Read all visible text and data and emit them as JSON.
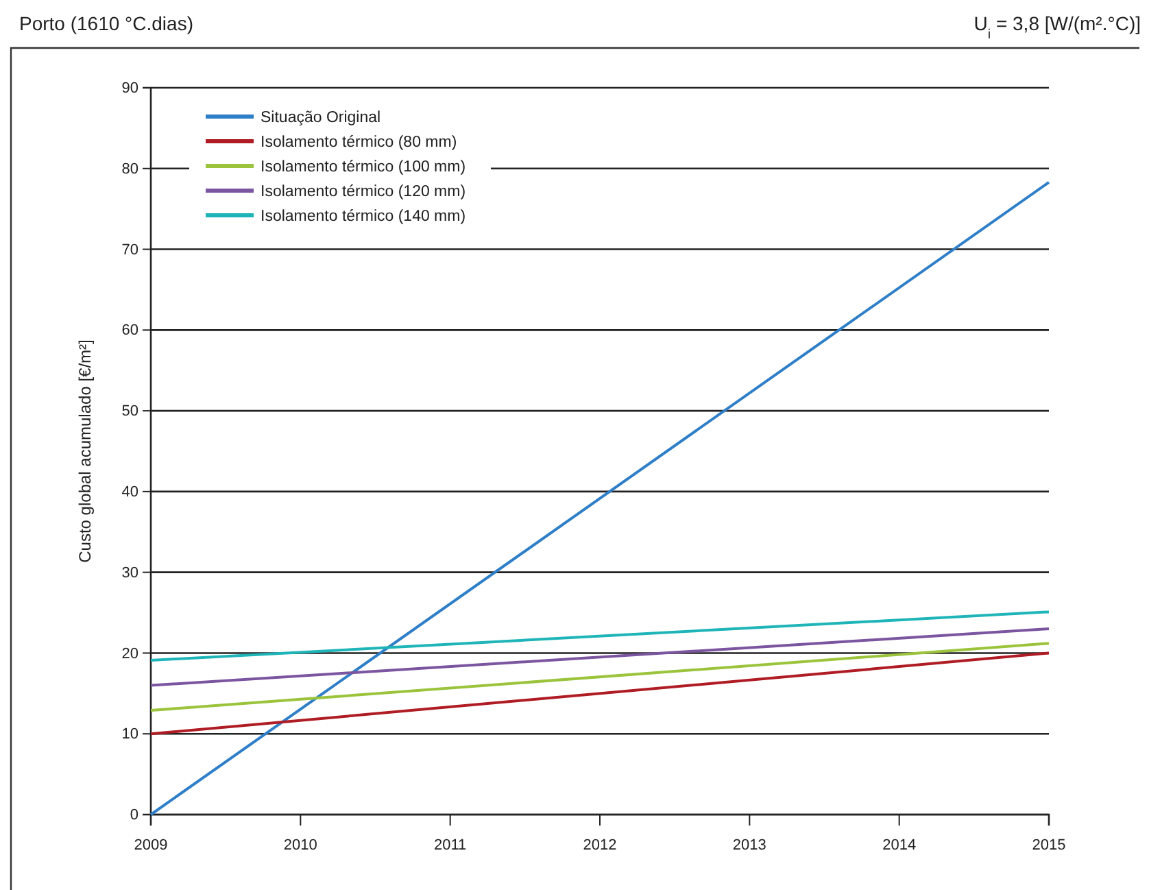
{
  "chart_data": {
    "type": "line",
    "title": "Porto (1610 °C.dias)",
    "subtitle": "U$_{i}$ = 3,8 [W/(m².°C)]",
    "ylabel": "Custo global acumulado [€/m²]",
    "x": [
      2009,
      2015
    ],
    "xlim": [
      2009,
      2015
    ],
    "xticks": [
      2009,
      2010,
      2011,
      2012,
      2013,
      2014,
      2015
    ],
    "ylim": [
      0,
      90
    ],
    "yticks": [
      0,
      10,
      20,
      30,
      40,
      50,
      60,
      70,
      80,
      90
    ],
    "grid": "y",
    "legend": "top left",
    "marker": "none",
    "line_style": "solid",
    "series": [
      {
        "name": "Situação Original",
        "color": "#2e7fc8",
        "values": [
          0,
          78.3
        ]
      },
      {
        "name": "Isolamento térmico (80 mm)",
        "color": "#b01c24",
        "values": [
          10,
          20
        ]
      },
      {
        "name": "Isolamento térmico (100 mm)",
        "color": "#9bc43c",
        "values": [
          12.9,
          21.2
        ]
      },
      {
        "name": "Isolamento térmico (120 mm)",
        "color": "#7b559f",
        "values": [
          16,
          23
        ]
      },
      {
        "name": "Isolamento térmico (140 mm)",
        "color": "#1fb5b8",
        "values": [
          19.1,
          25.1
        ]
      }
    ]
  }
}
